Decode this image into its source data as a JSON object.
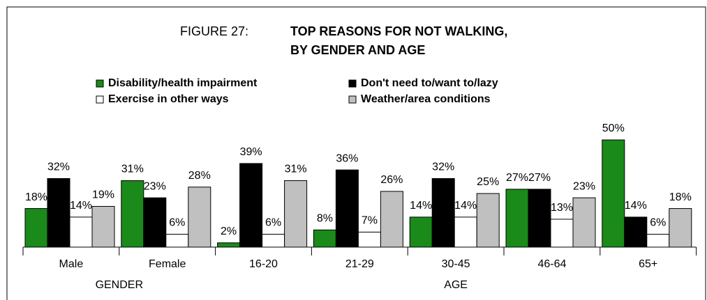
{
  "chart_data": {
    "type": "bar",
    "figure_label": "FIGURE 27:",
    "title": [
      "TOP REASONS FOR NOT WALKING,",
      "BY GENDER AND AGE"
    ],
    "categories": [
      "Male",
      "Female",
      "16-20",
      "21-29",
      "30-45",
      "46-64",
      "65+"
    ],
    "category_groups": [
      "GENDER",
      "AGE"
    ],
    "series": [
      {
        "name": "Disability/health impairment",
        "color": "#1a8a1a",
        "values": [
          18,
          31,
          2,
          8,
          14,
          27,
          50
        ],
        "value_labels": [
          "18%",
          "31%",
          "2%",
          "8%",
          "14%",
          "27%",
          "50%"
        ]
      },
      {
        "name": "Don't need to/want to/lazy",
        "color": "#000000",
        "values": [
          32,
          23,
          39,
          36,
          32,
          27,
          14
        ],
        "value_labels": [
          "32%",
          "23%",
          "39%",
          "36%",
          "32%",
          "27%",
          "14%"
        ]
      },
      {
        "name": "Exercise in other ways",
        "color": "#ffffff",
        "values": [
          14,
          6,
          6,
          7,
          14,
          13,
          6
        ],
        "value_labels": [
          "14%",
          "6%",
          "6%",
          "7%",
          "14%",
          "13%",
          "6%"
        ]
      },
      {
        "name": "Weather/area conditions",
        "color": "#c0c0c0",
        "values": [
          19,
          28,
          31,
          26,
          25,
          23,
          18
        ],
        "value_labels": [
          "19%",
          "28%",
          "31%",
          "26%",
          "25%",
          "23%",
          "18%"
        ]
      }
    ],
    "legend": "top"
  }
}
